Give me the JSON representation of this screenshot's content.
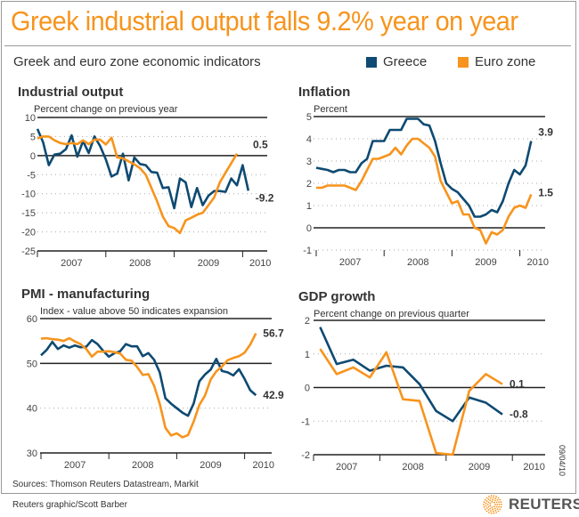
{
  "header": {
    "title": "Greek industrial output falls 9.2% year on year",
    "subtitle": "Greek and euro zone economic indicators"
  },
  "legend": [
    {
      "label": "Greece",
      "color": "#0e4a72"
    },
    {
      "label": "Euro zone",
      "color": "#f7941d"
    }
  ],
  "footer": {
    "sources": "Sources: Thomson Reuters Datastream, Markit",
    "credit": "Reuters graphic/Scott Barber",
    "date": "09/04/10",
    "logo": "REUTERS"
  },
  "chart_data": [
    {
      "type": "line",
      "title": "Industrial output",
      "ylabel": "Percent change on previous year",
      "frequency": "monthly",
      "x_start": "2007-01",
      "ylim": [
        -25,
        10
      ],
      "yticks": [
        10,
        5,
        0,
        -5,
        -10,
        -15,
        -20,
        -25
      ],
      "solid_lines": [
        10,
        0,
        -25
      ],
      "xtick_labels": [
        "2007",
        "2008",
        "2009",
        "2010"
      ],
      "series": [
        {
          "name": "Greece",
          "color": "#0e4a72",
          "end_label": "-9.2",
          "values": [
            7,
            3.5,
            -2.5,
            0.3,
            0.5,
            1.7,
            5.3,
            -0.3,
            3.8,
            0.7,
            5,
            2.5,
            -1,
            -5.5,
            -4.7,
            0.5,
            -6.5,
            -0.5,
            -2.2,
            -2.5,
            -4.3,
            -4.5,
            -8.5,
            -8.3,
            -13.8,
            -6,
            -7,
            -13.5,
            -8.5,
            -13,
            -10.5,
            -9.3,
            -9.3,
            -9.5,
            -6,
            -7.8,
            -2.5,
            -9.2
          ]
        },
        {
          "name": "Euro zone",
          "color": "#f7941d",
          "end_label": "0.5",
          "values": [
            4.5,
            5,
            5,
            4,
            3.3,
            3,
            3.3,
            3,
            4,
            3,
            4.2,
            4.2,
            2.9,
            4.7,
            -0.5,
            -0.7,
            -1.5,
            -2.3,
            -3.3,
            -5,
            -8.5,
            -12,
            -16,
            -18.5,
            -19,
            -20.3,
            -17,
            -16.3,
            -15.5,
            -15,
            -13,
            -11,
            -7,
            -4.5,
            -2,
            0.5
          ]
        }
      ]
    },
    {
      "type": "line",
      "title": "Inflation",
      "ylabel": "Percent",
      "frequency": "monthly",
      "x_start": "2007-01",
      "ylim": [
        -1,
        5
      ],
      "yticks": [
        5,
        4,
        3,
        2,
        1,
        0,
        -1
      ],
      "solid_lines": [
        5,
        0
      ],
      "xtick_labels": [
        "2007",
        "2008",
        "2009",
        "2010"
      ],
      "series": [
        {
          "name": "Greece",
          "color": "#0e4a72",
          "end_label": "3.9",
          "values": [
            2.7,
            2.65,
            2.6,
            2.5,
            2.6,
            2.6,
            2.5,
            2.5,
            2.9,
            3.1,
            3.9,
            3.9,
            3.9,
            4.4,
            4.4,
            4.4,
            4.9,
            4.9,
            4.9,
            4.65,
            4.6,
            3.9,
            2.9,
            2.0,
            1.75,
            1.6,
            1.3,
            1.0,
            0.5,
            0.5,
            0.6,
            0.8,
            0.7,
            1.2,
            2.0,
            2.6,
            2.4,
            2.8,
            3.9
          ]
        },
        {
          "name": "Euro zone",
          "color": "#f7941d",
          "end_label": "1.5",
          "values": [
            1.8,
            1.8,
            1.9,
            1.9,
            1.9,
            1.9,
            1.8,
            1.7,
            2.1,
            2.6,
            3.1,
            3.1,
            3.2,
            3.3,
            3.6,
            3.3,
            3.7,
            4.0,
            4.0,
            3.8,
            3.6,
            3.2,
            2.1,
            1.6,
            1.1,
            1.2,
            0.6,
            0.6,
            0.0,
            -0.1,
            -0.7,
            -0.2,
            -0.3,
            -0.1,
            0.5,
            0.9,
            1.0,
            0.9,
            1.5
          ]
        }
      ]
    },
    {
      "type": "line",
      "title": "PMI - manufacturing",
      "ylabel": "Index - value above 50 indicates expansion",
      "frequency": "monthly",
      "x_start": "2007-01",
      "ylim": [
        30,
        60
      ],
      "yticks": [
        60,
        50,
        40,
        30
      ],
      "solid_lines": [
        60,
        50,
        30
      ],
      "xtick_labels": [
        "2007",
        "2008",
        "2009",
        "2010"
      ],
      "series": [
        {
          "name": "Greece",
          "color": "#0e4a72",
          "end_label": "42.9",
          "values": [
            51.8,
            53,
            54.8,
            53.2,
            54,
            53.5,
            54,
            53.6,
            53.7,
            55.2,
            54.3,
            52.8,
            51.5,
            52.3,
            52.7,
            54.3,
            53.8,
            53.8,
            51.6,
            52.3,
            50.8,
            48,
            42.2,
            41,
            40,
            39,
            38.3,
            41,
            46,
            47.5,
            48.6,
            51,
            48.3,
            48,
            47.3,
            48.7,
            46.5,
            44,
            42.9
          ]
        },
        {
          "name": "Euro zone",
          "color": "#f7941d",
          "end_label": "56.7",
          "values": [
            55.5,
            55.6,
            55.4,
            55.3,
            55,
            55.6,
            54.9,
            54.3,
            53.2,
            51.5,
            52.6,
            52.6,
            52.7,
            52.5,
            52.2,
            50.8,
            50.6,
            49.2,
            47.4,
            47.6,
            45,
            41,
            35.6,
            33.9,
            34.4,
            33.5,
            34,
            37,
            40.7,
            42.8,
            46.4,
            48.2,
            49.3,
            50.7,
            51.2,
            51.6,
            52.4,
            54.2,
            56.7
          ]
        }
      ]
    },
    {
      "type": "line",
      "title": "GDP growth",
      "ylabel": "Percent change on previous quarter",
      "frequency": "quarterly",
      "x_start": "2007-Q1",
      "ylim": [
        -2,
        2
      ],
      "yticks": [
        2,
        1,
        0,
        -1,
        -2
      ],
      "solid_lines": [
        2,
        0,
        -2
      ],
      "xtick_labels": [
        "2007",
        "2008",
        "2009",
        "2010"
      ],
      "series": [
        {
          "name": "Greece",
          "color": "#0e4a72",
          "end_label": "-0.8",
          "values": [
            1.8,
            0.7,
            0.83,
            0.5,
            0.65,
            0.6,
            0.1,
            -0.7,
            -1.0,
            -0.3,
            -0.45,
            -0.8
          ]
        },
        {
          "name": "Euro zone",
          "color": "#f7941d",
          "end_label": "0.1",
          "values": [
            1.15,
            0.4,
            0.6,
            0.3,
            1.05,
            -0.35,
            -0.4,
            -1.95,
            -2.0,
            -0.1,
            0.4,
            0.1
          ]
        }
      ]
    }
  ]
}
